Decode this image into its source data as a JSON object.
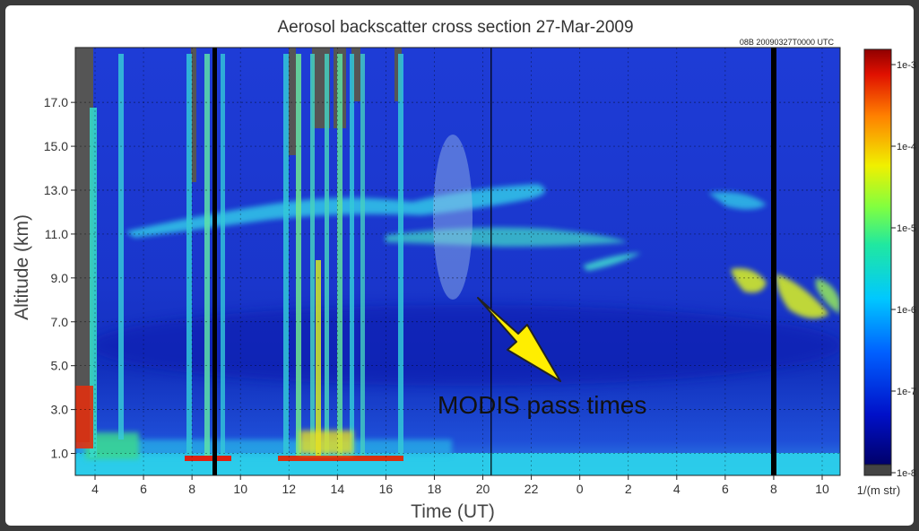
{
  "chart_data": {
    "type": "heatmap",
    "title": "Aerosol backscatter cross section  27-Mar-2009",
    "stamp": "08B  20090327T0000 UTC",
    "xlabel": "Time (UT)",
    "ylabel": "Altitude (km)",
    "x_tick_labels": [
      "4",
      "6",
      "8",
      "10",
      "12",
      "14",
      "16",
      "18",
      "20",
      "22",
      "0",
      "2",
      "4",
      "6",
      "8",
      "10"
    ],
    "y_tick_labels": [
      "1.0",
      "3.0",
      "5.0",
      "7.0",
      "9.0",
      "11.0",
      "13.0",
      "15.0",
      "17.0"
    ],
    "ylim": [
      0,
      19.5
    ],
    "grid": true,
    "colorbar": {
      "label": "1/(m str)",
      "tick_labels": [
        "1e-3",
        "1e-4",
        "1e-5",
        "1e-6",
        "1e-7",
        "1e-8"
      ],
      "scale": "log",
      "range": [
        "1e-8",
        "1e-3"
      ]
    },
    "annotation": {
      "text": "MODIS pass times",
      "color": "#ffee00"
    },
    "features": {
      "cirrus_layer_km": [
        10.5,
        13.5
      ],
      "boundary_layer_top_km": 1.5,
      "data_gaps": true
    }
  },
  "colors": {
    "background_field": "#1e3cd6",
    "deep_field": "#0c1fb0",
    "cloud_low": "#22c4ee",
    "cloud_mid": "#33e08a",
    "cloud_high": "#f0e020",
    "cloud_peak": "#e02010",
    "gap": "#555555",
    "arrow": "#ffee00"
  }
}
